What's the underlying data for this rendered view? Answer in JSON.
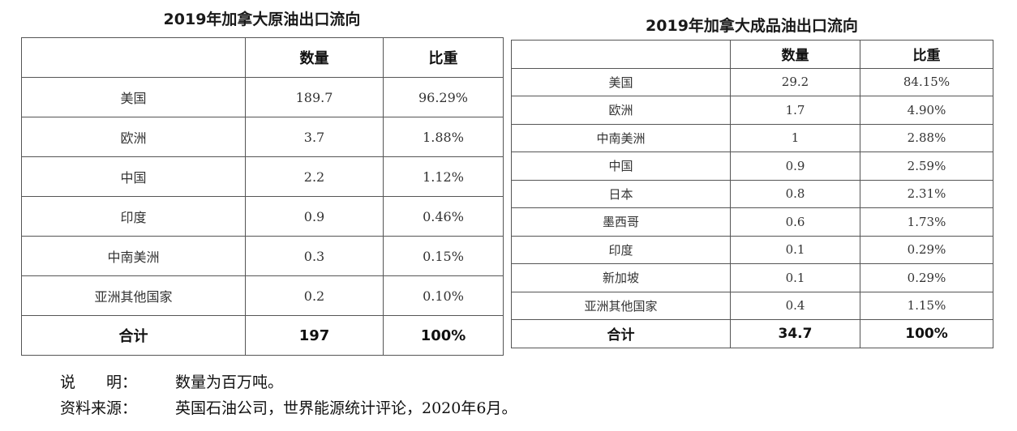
{
  "crude": {
    "title": "2019年加拿大原油出口流向",
    "headers": [
      "",
      "数量",
      "比重"
    ],
    "rows": [
      [
        "美国",
        "189.7",
        "96.29%"
      ],
      [
        "欧洲",
        "3.7",
        "1.88%"
      ],
      [
        "中国",
        "2.2",
        "1.12%"
      ],
      [
        "印度",
        "0.9",
        "0.46%"
      ],
      [
        "中南美洲",
        "0.3",
        "0.15%"
      ],
      [
        "亚洲其他国家",
        "0.2",
        "0.10%"
      ]
    ],
    "total": [
      "合计",
      "197",
      "100%"
    ]
  },
  "refined": {
    "title": "2019年加拿大成品油出口流向",
    "headers": [
      "",
      "数量",
      "比重"
    ],
    "rows": [
      [
        "美国",
        "29.2",
        "84.15%"
      ],
      [
        "欧洲",
        "1.7",
        "4.90%"
      ],
      [
        "中南美洲",
        "1",
        "2.88%"
      ],
      [
        "中国",
        "0.9",
        "2.59%"
      ],
      [
        "日本",
        "0.8",
        "2.31%"
      ],
      [
        "墨西哥",
        "0.6",
        "1.73%"
      ],
      [
        "印度",
        "0.1",
        "0.29%"
      ],
      [
        "新加坡",
        "0.1",
        "0.29%"
      ],
      [
        "亚洲其他国家",
        "0.4",
        "1.15%"
      ]
    ],
    "total": [
      "合计",
      "34.7",
      "100%"
    ]
  },
  "notes": {
    "explain_label": "说　　明：",
    "explain_text": "数量为百万吨。",
    "source_label": "资料来源：",
    "source_text": "英国石油公司，世界能源统计评论，2020年6月。"
  }
}
